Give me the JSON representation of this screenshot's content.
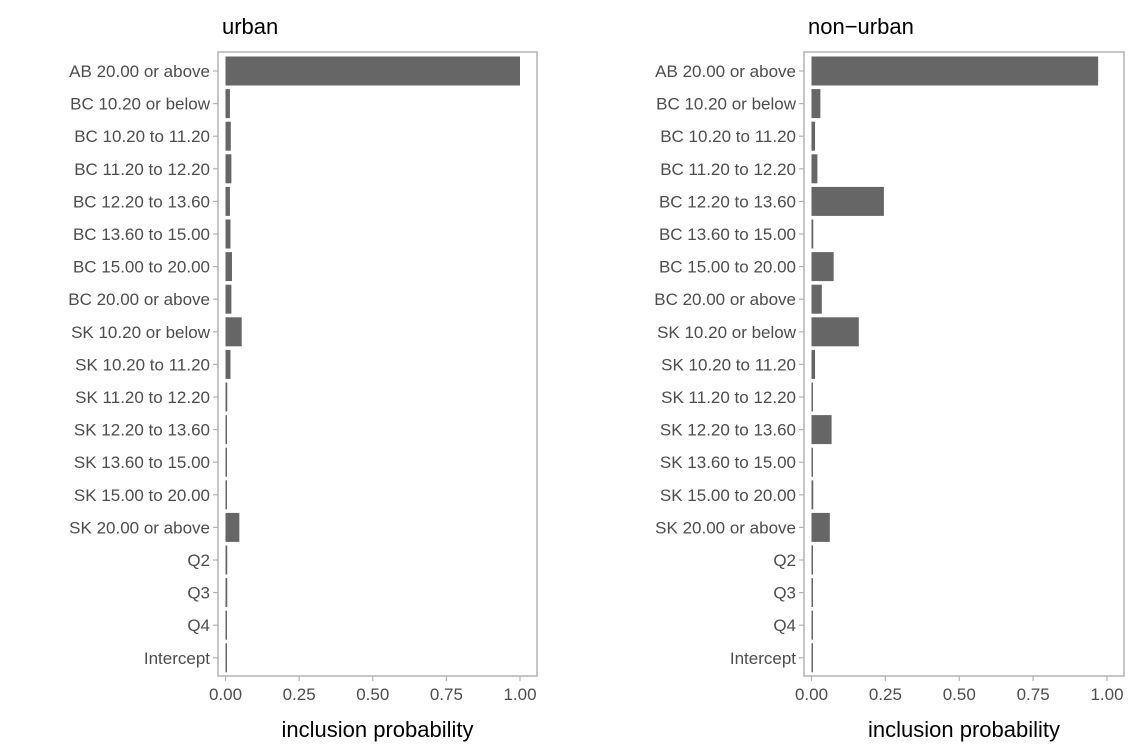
{
  "chart_data": [
    {
      "type": "bar",
      "orientation": "horizontal",
      "title": "urban",
      "xlabel": "inclusion probability",
      "ylabel": "",
      "xlim": [
        0,
        1
      ],
      "xticks": [
        "0.00",
        "0.25",
        "0.50",
        "0.75",
        "1.00"
      ],
      "grid": false,
      "bar_color": "#666666",
      "categories": [
        "AB 20.00 or above",
        "BC 10.20 or below",
        "BC 10.20 to 11.20",
        "BC 11.20 to 12.20",
        "BC 12.20 to 13.60",
        "BC 13.60 to 15.00",
        "BC 15.00 to 20.00",
        "BC 20.00 or above",
        "SK 10.20 or below",
        "SK 10.20 to 11.20",
        "SK 11.20 to 12.20",
        "SK 12.20 to 13.60",
        "SK 13.60 to 15.00",
        "SK 15.00 to 20.00",
        "SK 20.00 or above",
        "Q2",
        "Q3",
        "Q4",
        "Intercept"
      ],
      "values": [
        1.0,
        0.015,
        0.018,
        0.02,
        0.015,
        0.017,
        0.022,
        0.02,
        0.055,
        0.017,
        0.006,
        0.003,
        0.003,
        0.005,
        0.047,
        0.006,
        0.006,
        0.003,
        0.003
      ]
    },
    {
      "type": "bar",
      "orientation": "horizontal",
      "title": "non−urban",
      "xlabel": "inclusion probability",
      "ylabel": "",
      "xlim": [
        0,
        1
      ],
      "xticks": [
        "0.00",
        "0.25",
        "0.50",
        "0.75",
        "1.00"
      ],
      "grid": false,
      "bar_color": "#666666",
      "categories": [
        "AB 20.00 or above",
        "BC 10.20 or below",
        "BC 10.20 to 11.20",
        "BC 11.20 to 12.20",
        "BC 12.20 to 13.60",
        "BC 13.60 to 15.00",
        "BC 15.00 to 20.00",
        "BC 20.00 or above",
        "SK 10.20 or below",
        "SK 10.20 to 11.20",
        "SK 11.20 to 12.20",
        "SK 12.20 to 13.60",
        "SK 13.60 to 15.00",
        "SK 15.00 to 20.00",
        "SK 20.00 or above",
        "Q2",
        "Q3",
        "Q4",
        "Intercept"
      ],
      "values": [
        0.97,
        0.03,
        0.012,
        0.02,
        0.245,
        0.006,
        0.075,
        0.035,
        0.16,
        0.012,
        0.004,
        0.068,
        0.005,
        0.006,
        0.062,
        0.003,
        0.004,
        0.003,
        0.003
      ]
    }
  ]
}
